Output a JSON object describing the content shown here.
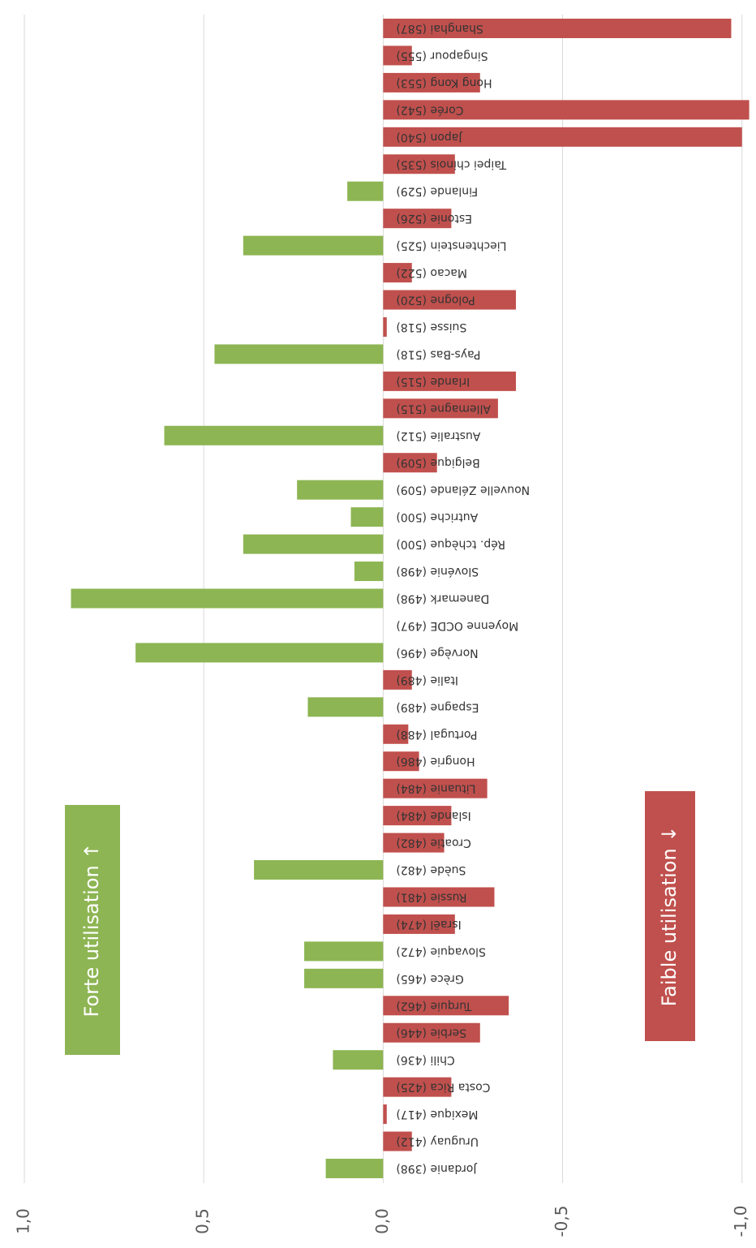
{
  "chart_data": {
    "type": "bar",
    "orientation": "horizontal-value-axis",
    "categories": [
      "Jordanie (398)",
      "Uruguay (412)",
      "Mexique (417)",
      "Costa Rica (425)",
      "Chili (436)",
      "Serbie (446)",
      "Turquie (462)",
      "Grèce (465)",
      "Slovaquie (472)",
      "Israël (474)",
      "Russie (481)",
      "Suède (482)",
      "Croatie (482)",
      "Islande (484)",
      "Lituanie (484)",
      "Hongrie (486)",
      "Portugal (488)",
      "Espagne (489)",
      "Italie (489)",
      "Norvège (496)",
      "Moyenne OCDE (497)",
      "Danemark (498)",
      "Slovénie (498)",
      "Rép. tchèque (500)",
      "Autriche (500)",
      "Nouvelle Zélande (509)",
      "Belgique (509)",
      "Australie (512)",
      "Allemagne (515)",
      "Irlande (515)",
      "Pays-Bas (518)",
      "Suisse (518)",
      "Pologne (520)",
      "Macao (522)",
      "Liechtenstein (525)",
      "Estonie (526)",
      "Finlande (529)",
      "Taipei chinois (535)",
      "Japon (540)",
      "Corée (542)",
      "Hong Kong (553)",
      "Singapour (555)",
      "Shanghai (587)"
    ],
    "values": [
      0.16,
      -0.08,
      -0.01,
      -0.19,
      0.14,
      -0.27,
      -0.35,
      0.22,
      0.22,
      -0.2,
      -0.31,
      0.36,
      -0.17,
      -0.19,
      -0.29,
      -0.1,
      -0.07,
      0.21,
      -0.08,
      0.69,
      0,
      0.87,
      0.08,
      0.39,
      0.09,
      0.24,
      -0.15,
      0.61,
      -0.32,
      -0.37,
      0.47,
      -0.01,
      -0.37,
      -0.08,
      0.39,
      -0.19,
      0.1,
      -0.2,
      -1.0,
      -1.02,
      -0.27,
      -0.08,
      -0.97
    ],
    "positive_color": "#8db553",
    "negative_color": "#c0504d",
    "ylim": [
      1.0,
      -1.03
    ],
    "yticks": [
      {
        "value": 1.0,
        "label": "1,0"
      },
      {
        "value": 0.5,
        "label": "0,5"
      },
      {
        "value": 0,
        "label": "0,0"
      },
      {
        "value": -0.5,
        "label": "-0,5"
      },
      {
        "value": -1.0,
        "label": "-1,0"
      }
    ],
    "grid": true,
    "annotations": [
      {
        "text": "Forte utilisation ↑",
        "color": "#8db553"
      },
      {
        "text": "Faible utilisation ↓",
        "color": "#c0504d"
      }
    ]
  }
}
